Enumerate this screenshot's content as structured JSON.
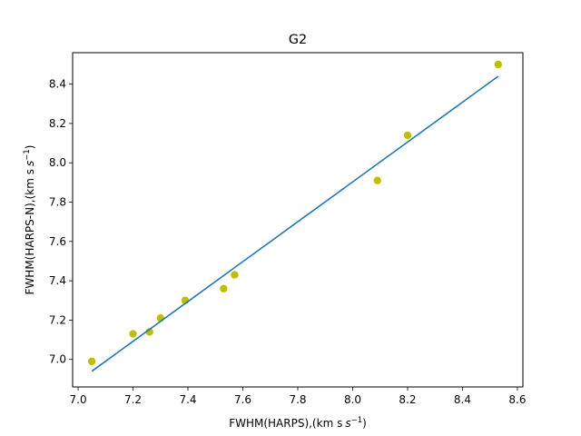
{
  "chart_data": {
    "type": "scatter",
    "title": "G2",
    "xlabel": "FWHM(HARPS),(km s",
    "ylabel": "FWHM(HARPS-N),(km s",
    "unit_exponent": "−1",
    "unit_close": ")",
    "xlim": [
      6.98,
      8.62
    ],
    "ylim": [
      6.86,
      8.56
    ],
    "xticks": [
      "7.0",
      "7.2",
      "7.4",
      "7.6",
      "7.8",
      "8.0",
      "8.2",
      "8.4",
      "8.6"
    ],
    "yticks": [
      "7.0",
      "7.2",
      "7.4",
      "7.6",
      "7.8",
      "8.0",
      "8.2",
      "8.4"
    ],
    "grid": false,
    "series": [
      {
        "kind": "points",
        "color": "#bfbf00",
        "x": [
          7.05,
          7.2,
          7.26,
          7.3,
          7.39,
          7.53,
          7.57,
          8.09,
          8.2,
          8.53
        ],
        "y": [
          6.99,
          7.13,
          7.14,
          7.21,
          7.3,
          7.36,
          7.43,
          7.91,
          8.14,
          8.5
        ]
      },
      {
        "kind": "fit-line",
        "color": "#1f77b4",
        "x": [
          7.05,
          8.53
        ],
        "y": [
          6.94,
          8.44
        ]
      }
    ]
  }
}
